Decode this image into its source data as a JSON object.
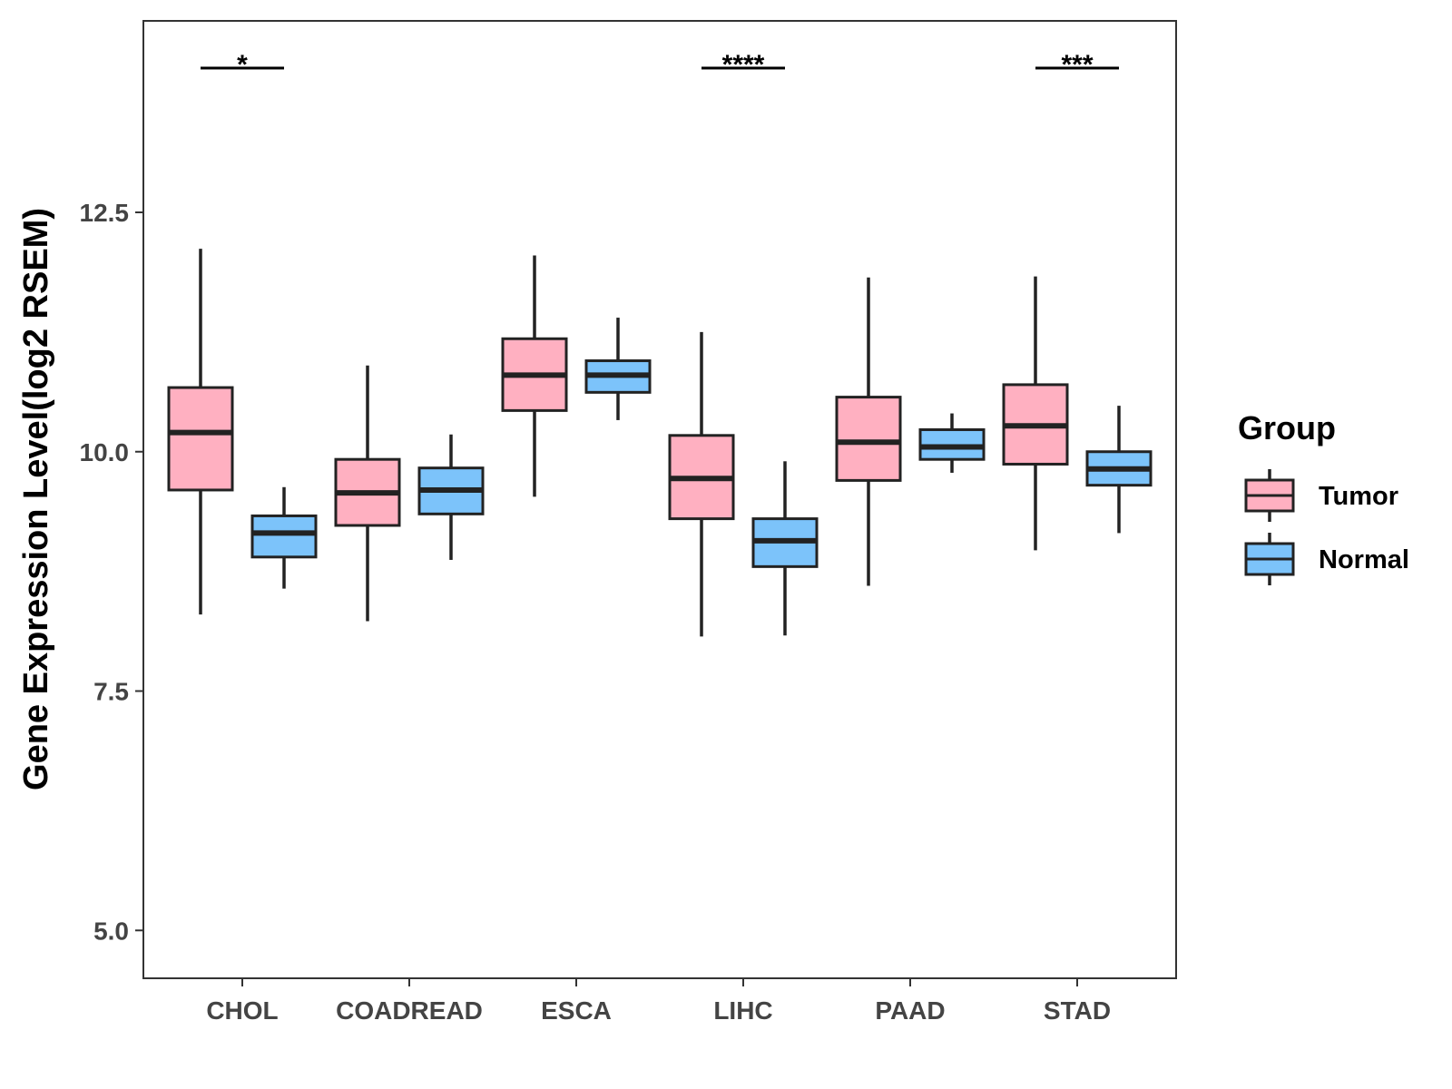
{
  "chart_data": {
    "type": "boxplot",
    "title": "",
    "xlabel": "",
    "ylabel": "Gene Expression Level(log2 RSEM)",
    "ylim": [
      4.5,
      14.5
    ],
    "yticks": [
      5.0,
      7.5,
      10.0,
      12.5
    ],
    "ytick_labels": [
      "5.0",
      "7.5",
      "10.0",
      "12.5"
    ],
    "categories": [
      "CHOL",
      "COADREAD",
      "ESCA",
      "LIHC",
      "PAAD",
      "STAD"
    ],
    "legend": {
      "title": "Group",
      "position": "right",
      "entries": [
        {
          "name": "Tumor",
          "color": "#FFB0C1"
        },
        {
          "name": "Normal",
          "color": "#7CC3FA"
        }
      ]
    },
    "series": [
      {
        "name": "Tumor",
        "color": "#FFB0C1",
        "boxes": [
          {
            "category": "CHOL",
            "whisker_low": 8.3,
            "q1": 9.6,
            "median": 10.2,
            "q3": 10.67,
            "whisker_high": 12.12
          },
          {
            "category": "COADREAD",
            "whisker_low": 8.23,
            "q1": 9.23,
            "median": 9.57,
            "q3": 9.92,
            "whisker_high": 10.9
          },
          {
            "category": "ESCA",
            "whisker_low": 9.53,
            "q1": 10.43,
            "median": 10.8,
            "q3": 11.18,
            "whisker_high": 12.05
          },
          {
            "category": "LIHC",
            "whisker_low": 8.07,
            "q1": 9.3,
            "median": 9.72,
            "q3": 10.17,
            "whisker_high": 11.25
          },
          {
            "category": "PAAD",
            "whisker_low": 8.6,
            "q1": 9.7,
            "median": 10.1,
            "q3": 10.57,
            "whisker_high": 11.82
          },
          {
            "category": "STAD",
            "whisker_low": 8.97,
            "q1": 9.87,
            "median": 10.27,
            "q3": 10.7,
            "whisker_high": 11.83
          }
        ]
      },
      {
        "name": "Normal",
        "color": "#7CC3FA",
        "boxes": [
          {
            "category": "CHOL",
            "whisker_low": 8.57,
            "q1": 8.9,
            "median": 9.15,
            "q3": 9.33,
            "whisker_high": 9.63
          },
          {
            "category": "COADREAD",
            "whisker_low": 8.87,
            "q1": 9.35,
            "median": 9.6,
            "q3": 9.83,
            "whisker_high": 10.18
          },
          {
            "category": "ESCA",
            "whisker_low": 10.33,
            "q1": 10.62,
            "median": 10.8,
            "q3": 10.95,
            "whisker_high": 11.4
          },
          {
            "category": "LIHC",
            "whisker_low": 8.08,
            "q1": 8.8,
            "median": 9.07,
            "q3": 9.3,
            "whisker_high": 9.9
          },
          {
            "category": "PAAD",
            "whisker_low": 9.78,
            "q1": 9.92,
            "median": 10.05,
            "q3": 10.23,
            "whisker_high": 10.4
          },
          {
            "category": "STAD",
            "whisker_low": 9.15,
            "q1": 9.65,
            "median": 9.82,
            "q3": 10.0,
            "whisker_high": 10.48
          }
        ]
      }
    ],
    "annotations": [
      {
        "category": "CHOL",
        "label": "*"
      },
      {
        "category": "LIHC",
        "label": "****"
      },
      {
        "category": "STAD",
        "label": "***"
      }
    ]
  }
}
